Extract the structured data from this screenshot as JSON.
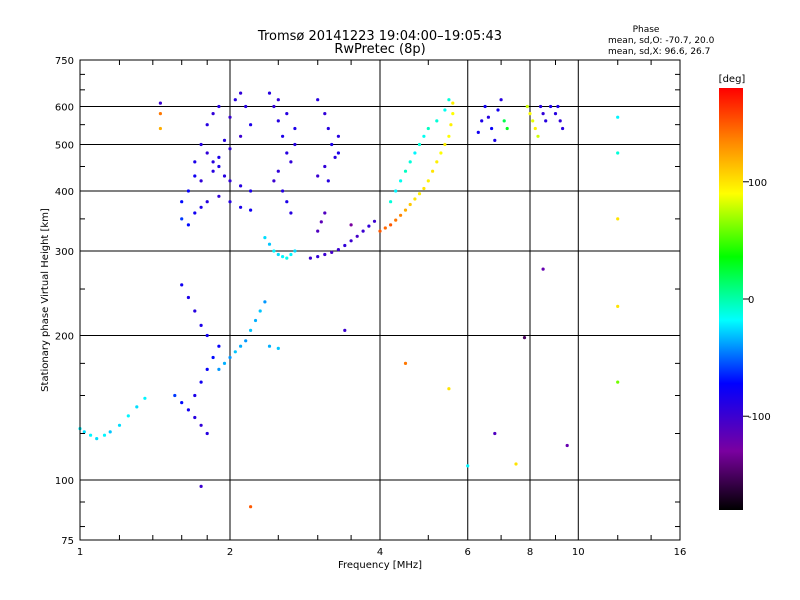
{
  "chart_data": {
    "type": "scatter",
    "title": "Tromsø 20141223 19:04:00–19:05:43",
    "subtitle": "RwPretec (8p)",
    "xlabel": "Frequency [MHz]",
    "ylabel": "Stationary phase Virtual Height [km]",
    "x_scale": "log",
    "y_scale": "log",
    "xlim": [
      1,
      16
    ],
    "ylim": [
      75,
      750
    ],
    "x_ticks": [
      1,
      2,
      4,
      6,
      8,
      10,
      16
    ],
    "x_tick_labels": [
      "1",
      "2",
      "4",
      "6",
      "8",
      "10",
      "16"
    ],
    "y_ticks": [
      75,
      100,
      200,
      300,
      400,
      500,
      600,
      750
    ],
    "y_tick_labels": [
      "75",
      "100",
      "200",
      "300",
      "400",
      "500",
      "600",
      "750"
    ],
    "grid": true,
    "legend": {
      "title": "Phase",
      "lines": [
        "mean, sd,O: -70.7, 20.0",
        "mean, sd,X: 96.6, 26.7"
      ]
    },
    "colorbar": {
      "label": "[deg]",
      "ticks": [
        100,
        0,
        -100
      ],
      "tick_labels": [
        "100",
        "0",
        "-100"
      ],
      "range": [
        -180,
        180
      ],
      "colormap": "rainbow (black-purple-blue-cyan-green-yellow-orange-red)"
    },
    "series": [
      {
        "points": [
          [
            1.75,
            500,
            -90
          ],
          [
            1.8,
            480,
            -95
          ],
          [
            1.85,
            460,
            -90
          ],
          [
            1.9,
            450,
            -85
          ],
          [
            1.95,
            430,
            -90
          ],
          [
            2.0,
            420,
            -95
          ],
          [
            2.1,
            410,
            -90
          ],
          [
            2.2,
            400,
            -85
          ],
          [
            1.7,
            430,
            -80
          ],
          [
            1.65,
            400,
            -75
          ],
          [
            1.6,
            380,
            -70
          ],
          [
            1.6,
            350,
            -60
          ],
          [
            1.65,
            340,
            -70
          ],
          [
            1.7,
            360,
            -80
          ],
          [
            1.75,
            370,
            -85
          ],
          [
            1.8,
            380,
            -90
          ],
          [
            1.9,
            390,
            -95
          ],
          [
            2.0,
            380,
            -90
          ],
          [
            2.1,
            370,
            -85
          ],
          [
            2.2,
            365,
            -80
          ],
          [
            1.8,
            550,
            -90
          ],
          [
            1.85,
            580,
            -95
          ],
          [
            1.9,
            600,
            -90
          ],
          [
            2.0,
            570,
            -100
          ],
          [
            2.05,
            620,
            -90
          ],
          [
            2.1,
            640,
            -95
          ],
          [
            2.15,
            600,
            -90
          ],
          [
            2.2,
            550,
            -85
          ],
          [
            2.1,
            520,
            -100
          ],
          [
            2.0,
            490,
            -95
          ],
          [
            1.95,
            510,
            -90
          ],
          [
            1.9,
            470,
            -85
          ],
          [
            1.85,
            440,
            -90
          ],
          [
            1.75,
            420,
            -95
          ],
          [
            1.7,
            460,
            -85
          ],
          [
            2.4,
            640,
            -90
          ],
          [
            2.45,
            600,
            -95
          ],
          [
            2.5,
            560,
            -90
          ],
          [
            2.55,
            520,
            -85
          ],
          [
            2.6,
            480,
            -90
          ],
          [
            2.5,
            440,
            -95
          ],
          [
            2.45,
            420,
            -100
          ],
          [
            2.55,
            400,
            -90
          ],
          [
            2.6,
            380,
            -85
          ],
          [
            2.65,
            360,
            -90
          ],
          [
            2.5,
            620,
            -95
          ],
          [
            2.6,
            580,
            -90
          ],
          [
            2.7,
            540,
            -85
          ],
          [
            2.7,
            500,
            -90
          ],
          [
            2.65,
            460,
            -95
          ],
          [
            3.0,
            620,
            -90
          ],
          [
            3.1,
            580,
            -95
          ],
          [
            3.15,
            540,
            -90
          ],
          [
            3.2,
            500,
            -85
          ],
          [
            3.25,
            470,
            -90
          ],
          [
            3.1,
            450,
            -95
          ],
          [
            3.0,
            430,
            -100
          ],
          [
            3.15,
            420,
            -90
          ],
          [
            3.3,
            480,
            -85
          ],
          [
            3.3,
            520,
            -90
          ],
          [
            2.45,
            300,
            -20
          ],
          [
            2.5,
            295,
            -25
          ],
          [
            2.55,
            292,
            -20
          ],
          [
            2.6,
            290,
            -15
          ],
          [
            2.65,
            295,
            -20
          ],
          [
            2.7,
            300,
            -25
          ],
          [
            2.4,
            310,
            -30
          ],
          [
            2.35,
            320,
            -25
          ],
          [
            2.9,
            290,
            -100
          ],
          [
            3.0,
            292,
            -95
          ],
          [
            3.1,
            295,
            -100
          ],
          [
            3.2,
            298,
            -105
          ],
          [
            3.3,
            302,
            -100
          ],
          [
            3.4,
            308,
            -95
          ],
          [
            3.5,
            315,
            -100
          ],
          [
            3.6,
            322,
            -105
          ],
          [
            3.7,
            330,
            -100
          ],
          [
            3.8,
            338,
            -95
          ],
          [
            3.9,
            346,
            -100
          ],
          [
            3.0,
            330,
            -110
          ],
          [
            3.05,
            345,
            -115
          ],
          [
            3.1,
            360,
            -110
          ],
          [
            4.0,
            330,
            150
          ],
          [
            4.1,
            335,
            145
          ],
          [
            4.2,
            340,
            150
          ],
          [
            4.3,
            348,
            140
          ],
          [
            4.4,
            356,
            135
          ],
          [
            4.5,
            365,
            120
          ],
          [
            4.6,
            375,
            110
          ],
          [
            4.7,
            385,
            100
          ],
          [
            4.8,
            395,
            95
          ],
          [
            4.9,
            405,
            100
          ],
          [
            5.0,
            420,
            95
          ],
          [
            5.1,
            440,
            100
          ],
          [
            5.2,
            460,
            95
          ],
          [
            5.3,
            480,
            90
          ],
          [
            5.4,
            500,
            95
          ],
          [
            5.5,
            520,
            90
          ],
          [
            5.55,
            550,
            95
          ],
          [
            5.6,
            580,
            90
          ],
          [
            5.6,
            610,
            95
          ],
          [
            4.2,
            380,
            -10
          ],
          [
            4.3,
            400,
            -20
          ],
          [
            4.4,
            420,
            -15
          ],
          [
            4.5,
            440,
            -5
          ],
          [
            4.6,
            460,
            -10
          ],
          [
            4.7,
            480,
            -20
          ],
          [
            4.8,
            500,
            -10
          ],
          [
            4.9,
            520,
            -15
          ],
          [
            5.0,
            540,
            -5
          ],
          [
            5.2,
            560,
            -10
          ],
          [
            5.4,
            590,
            -15
          ],
          [
            5.5,
            620,
            -10
          ],
          [
            6.5,
            600,
            -80
          ],
          [
            6.6,
            570,
            -90
          ],
          [
            6.7,
            540,
            -75
          ],
          [
            6.8,
            510,
            -85
          ],
          [
            6.9,
            590,
            -80
          ],
          [
            7.0,
            620,
            -90
          ],
          [
            6.4,
            560,
            -85
          ],
          [
            6.3,
            530,
            -80
          ],
          [
            7.1,
            560,
            20
          ],
          [
            7.2,
            540,
            30
          ],
          [
            7.9,
            600,
            80
          ],
          [
            8.0,
            580,
            90
          ],
          [
            8.1,
            560,
            85
          ],
          [
            8.2,
            540,
            95
          ],
          [
            8.3,
            520,
            80
          ],
          [
            8.4,
            600,
            -90
          ],
          [
            8.5,
            580,
            -95
          ],
          [
            8.6,
            560,
            -90
          ],
          [
            8.8,
            600,
            -85
          ],
          [
            9.0,
            580,
            -90
          ],
          [
            9.2,
            560,
            -95
          ],
          [
            9.3,
            540,
            -90
          ],
          [
            9.1,
            600,
            -85
          ],
          [
            1.0,
            128,
            -20
          ],
          [
            1.02,
            126,
            -25
          ],
          [
            1.05,
            124,
            -20
          ],
          [
            1.08,
            122,
            -25
          ],
          [
            1.12,
            124,
            -20
          ],
          [
            1.15,
            126,
            -30
          ],
          [
            1.2,
            130,
            -25
          ],
          [
            1.25,
            136,
            -20
          ],
          [
            1.3,
            142,
            -25
          ],
          [
            1.35,
            148,
            -20
          ],
          [
            1.55,
            150,
            -60
          ],
          [
            1.6,
            145,
            -70
          ],
          [
            1.65,
            140,
            -80
          ],
          [
            1.7,
            135,
            -90
          ],
          [
            1.75,
            130,
            -95
          ],
          [
            1.8,
            125,
            -90
          ],
          [
            1.7,
            150,
            -85
          ],
          [
            1.75,
            160,
            -80
          ],
          [
            1.8,
            170,
            -75
          ],
          [
            1.85,
            180,
            -70
          ],
          [
            1.9,
            190,
            -75
          ],
          [
            1.8,
            200,
            -80
          ],
          [
            1.75,
            210,
            -85
          ],
          [
            1.7,
            225,
            -90
          ],
          [
            1.65,
            240,
            -85
          ],
          [
            1.6,
            255,
            -80
          ],
          [
            1.9,
            170,
            -40
          ],
          [
            1.95,
            175,
            -35
          ],
          [
            2.0,
            180,
            -40
          ],
          [
            2.05,
            185,
            -30
          ],
          [
            2.1,
            190,
            -35
          ],
          [
            2.15,
            195,
            -40
          ],
          [
            2.2,
            205,
            -30
          ],
          [
            2.25,
            215,
            -35
          ],
          [
            2.3,
            225,
            -30
          ],
          [
            2.35,
            235,
            -40
          ],
          [
            2.4,
            190,
            -35
          ],
          [
            2.5,
            188,
            -30
          ],
          [
            1.45,
            610,
            -100
          ],
          [
            1.45,
            580,
            140
          ],
          [
            1.45,
            540,
            120
          ],
          [
            3.5,
            340,
            -130
          ],
          [
            3.4,
            205,
            -100
          ],
          [
            4.5,
            175,
            140
          ],
          [
            5.5,
            155,
            100
          ],
          [
            6.8,
            125,
            -110
          ],
          [
            7.5,
            108,
            100
          ],
          [
            8.5,
            275,
            -120
          ],
          [
            9.5,
            118,
            -120
          ],
          [
            12.0,
            570,
            -20
          ],
          [
            12.0,
            480,
            -10
          ],
          [
            12.0,
            350,
            100
          ],
          [
            12.0,
            160,
            60
          ],
          [
            12.0,
            230,
            100
          ],
          [
            2.2,
            88,
            150
          ],
          [
            1.75,
            97,
            -100
          ],
          [
            6.0,
            107,
            -20
          ],
          [
            7.8,
            198,
            -150
          ]
        ]
      }
    ]
  }
}
